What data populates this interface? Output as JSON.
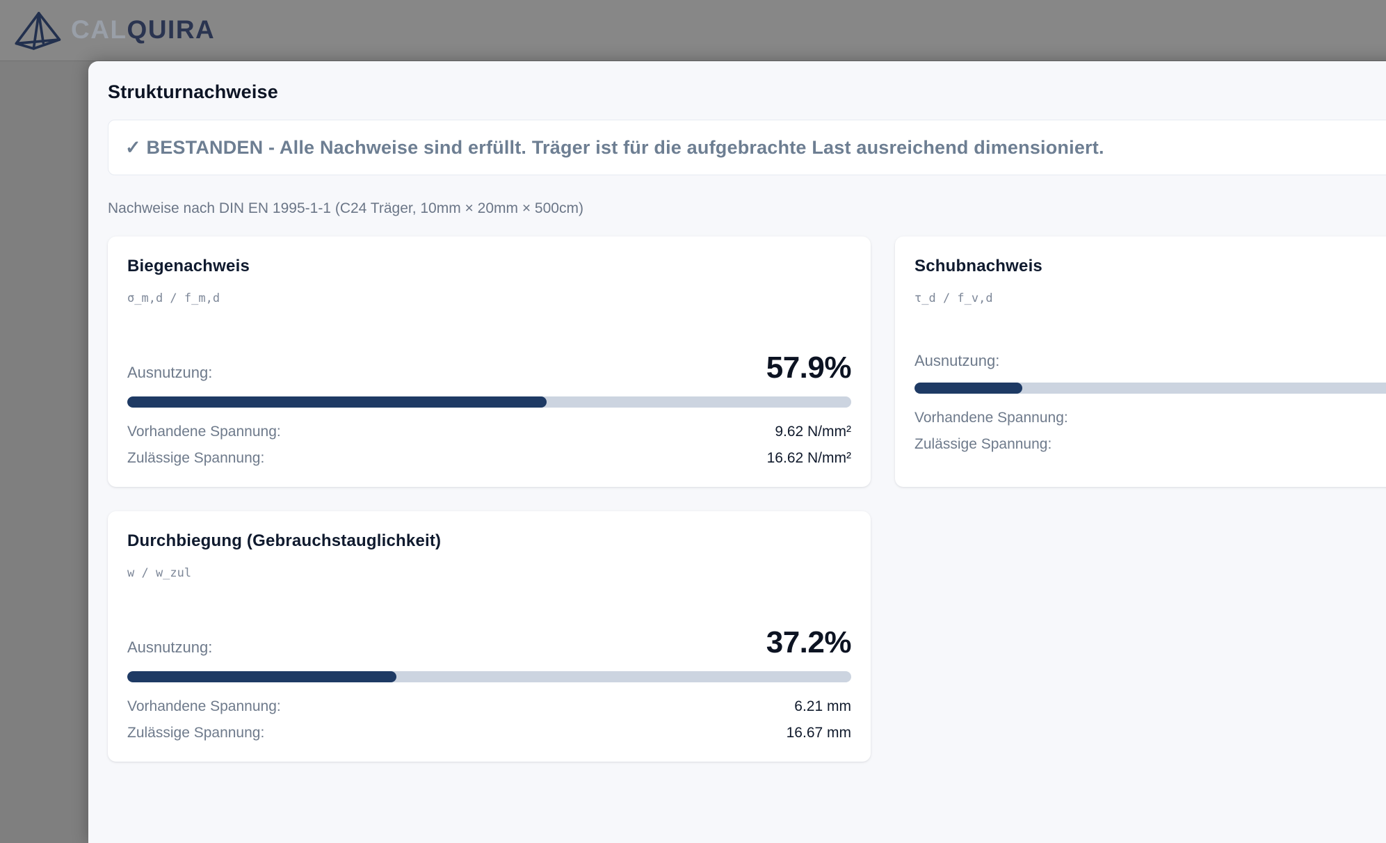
{
  "header": {
    "brand_prefix": "CAL",
    "brand_suffix": "QUIRA"
  },
  "panel": {
    "title": "Strukturnachweise",
    "status_banner": "✓ BESTANDEN - Alle Nachweise sind erfüllt. Träger ist für die aufgebrachte Last ausreichend dimensioniert.",
    "subtitle": "Nachweise nach DIN EN 1995-1-1 (C24 Träger, 10mm × 20mm × 500cm)"
  },
  "labels": {
    "utilization": "Ausnutzung:",
    "present": "Vorhandene Spannung:",
    "allowed": "Zulässige Spannung:"
  },
  "colors": {
    "accent_navy": "#1e3a64",
    "progress_track": "#ccd4e0",
    "banner_text": "#6d7e92",
    "overlay_gray": "#7f7f7f",
    "panel_bg": "#f7f8fb"
  },
  "cards": [
    {
      "title": "Biegenachweis",
      "formula": "σ_m,d / f_m,d",
      "percent": "57.9%",
      "bar_percent": 57.9,
      "present_value": "9.62 N/mm²",
      "allowed_value": "16.62 N/mm²"
    },
    {
      "title": "Schubnachweis",
      "formula": "τ_d / f_v,d",
      "percent": "",
      "bar_percent": 14.9,
      "present_value": "",
      "allowed_value": ""
    },
    {
      "title": "Durchbiegung (Gebrauchstauglichkeit)",
      "formula": "w / w_zul",
      "percent": "37.2%",
      "bar_percent": 37.2,
      "present_value": "6.21 mm",
      "allowed_value": "16.67 mm"
    }
  ]
}
